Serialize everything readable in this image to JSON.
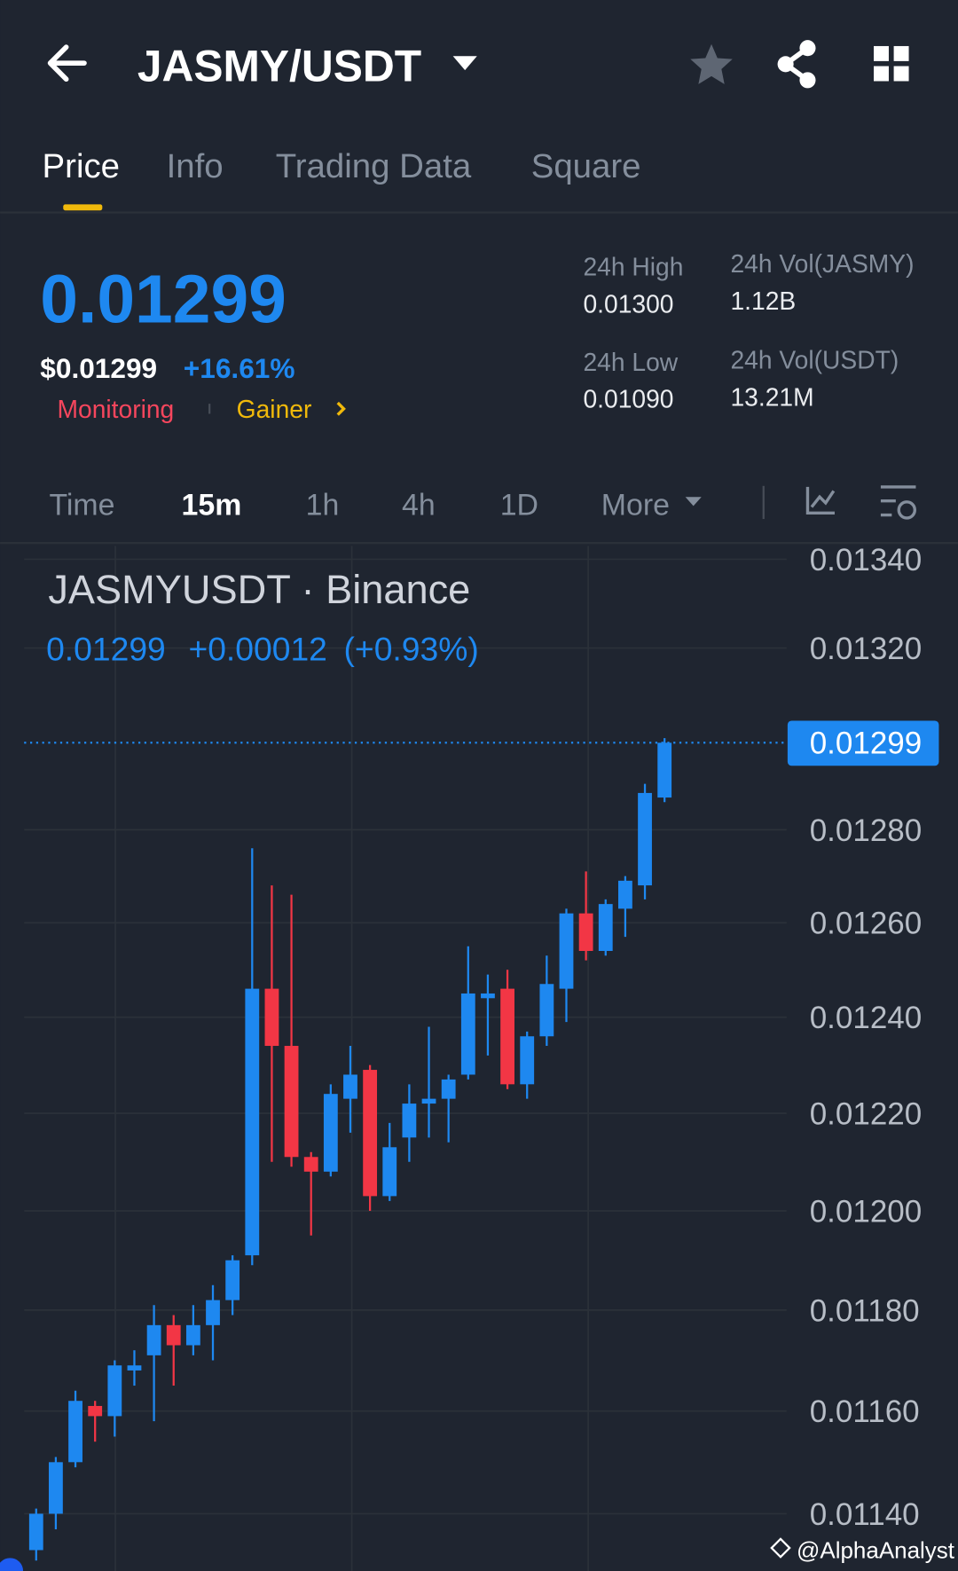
{
  "header": {
    "pair": "JASMY/USDT"
  },
  "tabs": [
    "Price",
    "Info",
    "Trading Data",
    "Square"
  ],
  "price": {
    "last": "0.01299",
    "usd": "$0.01299",
    "change": "+16.61%",
    "tags": [
      "Monitoring",
      "Gainer"
    ]
  },
  "stats": [
    {
      "label": "24h High",
      "value": "0.01300"
    },
    {
      "label": "24h Vol(JASMY)",
      "value": "1.12B"
    },
    {
      "label": "24h Low",
      "value": "0.01090"
    },
    {
      "label": "24h Vol(USDT)",
      "value": "13.21M"
    }
  ],
  "intervals": [
    "Time",
    "15m",
    "1h",
    "4h",
    "1D",
    "More"
  ],
  "chart_data": {
    "type": "candlestick",
    "title": "JASMYUSDT · Binance",
    "legend": {
      "price": "0.01299",
      "change": "+0.00012",
      "change_pct": "(+0.93%)"
    },
    "log_scale": true,
    "grid": true,
    "up_color": "#1e88f0",
    "down_color": "#f23645",
    "ylim": [
      0.01129,
      0.01343
    ],
    "yticks": [
      {
        "value": 0.0134,
        "label": "0.01340"
      },
      {
        "value": 0.0132,
        "label": "0.01320"
      },
      {
        "value": 0.0128,
        "label": "0.01280"
      },
      {
        "value": 0.0126,
        "label": "0.01260"
      },
      {
        "value": 0.0124,
        "label": "0.01240"
      },
      {
        "value": 0.0122,
        "label": "0.01220"
      },
      {
        "value": 0.012,
        "label": "0.01200"
      },
      {
        "value": 0.0118,
        "label": "0.01180"
      },
      {
        "value": 0.0116,
        "label": "0.01160"
      },
      {
        "value": 0.0114,
        "label": "0.01140"
      }
    ],
    "last_price": 0.01299,
    "categories": [
      null,
      null,
      null,
      null,
      null,
      null,
      null,
      null,
      null,
      null,
      null,
      null,
      null,
      null,
      null,
      null,
      null,
      null,
      null,
      null,
      null,
      null,
      null,
      null,
      null,
      null,
      null,
      null,
      null,
      null,
      null,
      null,
      null
    ],
    "open": [
      0.01133,
      0.0114,
      0.0115,
      0.01161,
      0.01159,
      0.01168,
      0.01171,
      0.01177,
      0.01173,
      0.01177,
      0.01182,
      0.01191,
      0.01246,
      0.01234,
      0.01211,
      0.01208,
      0.01223,
      0.01229,
      0.01203,
      0.01215,
      0.01222,
      0.01223,
      0.01228,
      0.01244,
      0.01246,
      0.01226,
      0.01236,
      0.01246,
      0.01262,
      0.01254,
      0.01263,
      0.01268,
      0.01287
    ],
    "high": [
      0.01141,
      0.01151,
      0.01164,
      0.01162,
      0.0117,
      0.01172,
      0.01181,
      0.01179,
      0.01181,
      0.01185,
      0.01191,
      0.01276,
      0.01268,
      0.01266,
      0.01212,
      0.01226,
      0.01234,
      0.0123,
      0.01218,
      0.01226,
      0.01238,
      0.01228,
      0.01255,
      0.01249,
      0.0125,
      0.01237,
      0.01253,
      0.01263,
      0.01271,
      0.01265,
      0.0127,
      0.0129,
      0.013
    ],
    "low": [
      0.01131,
      0.01137,
      0.01149,
      0.01154,
      0.01155,
      0.01165,
      0.01158,
      0.01165,
      0.01171,
      0.0117,
      0.01179,
      0.01189,
      0.0121,
      0.01209,
      0.01195,
      0.01207,
      0.01216,
      0.012,
      0.01202,
      0.0121,
      0.01215,
      0.01214,
      0.01227,
      0.01232,
      0.01225,
      0.01223,
      0.01234,
      0.01239,
      0.01252,
      0.01253,
      0.01257,
      0.01265,
      0.01286
    ],
    "close": [
      0.0114,
      0.0115,
      0.01162,
      0.01159,
      0.01169,
      0.01169,
      0.01177,
      0.01173,
      0.01177,
      0.01182,
      0.0119,
      0.01246,
      0.01234,
      0.01211,
      0.01208,
      0.01224,
      0.01228,
      0.01203,
      0.01213,
      0.01222,
      0.01223,
      0.01227,
      0.01245,
      0.01245,
      0.01226,
      0.01236,
      0.01247,
      0.01262,
      0.01254,
      0.01264,
      0.01269,
      0.01288,
      0.01299
    ]
  },
  "watermark": "@AlphaAnalyst"
}
